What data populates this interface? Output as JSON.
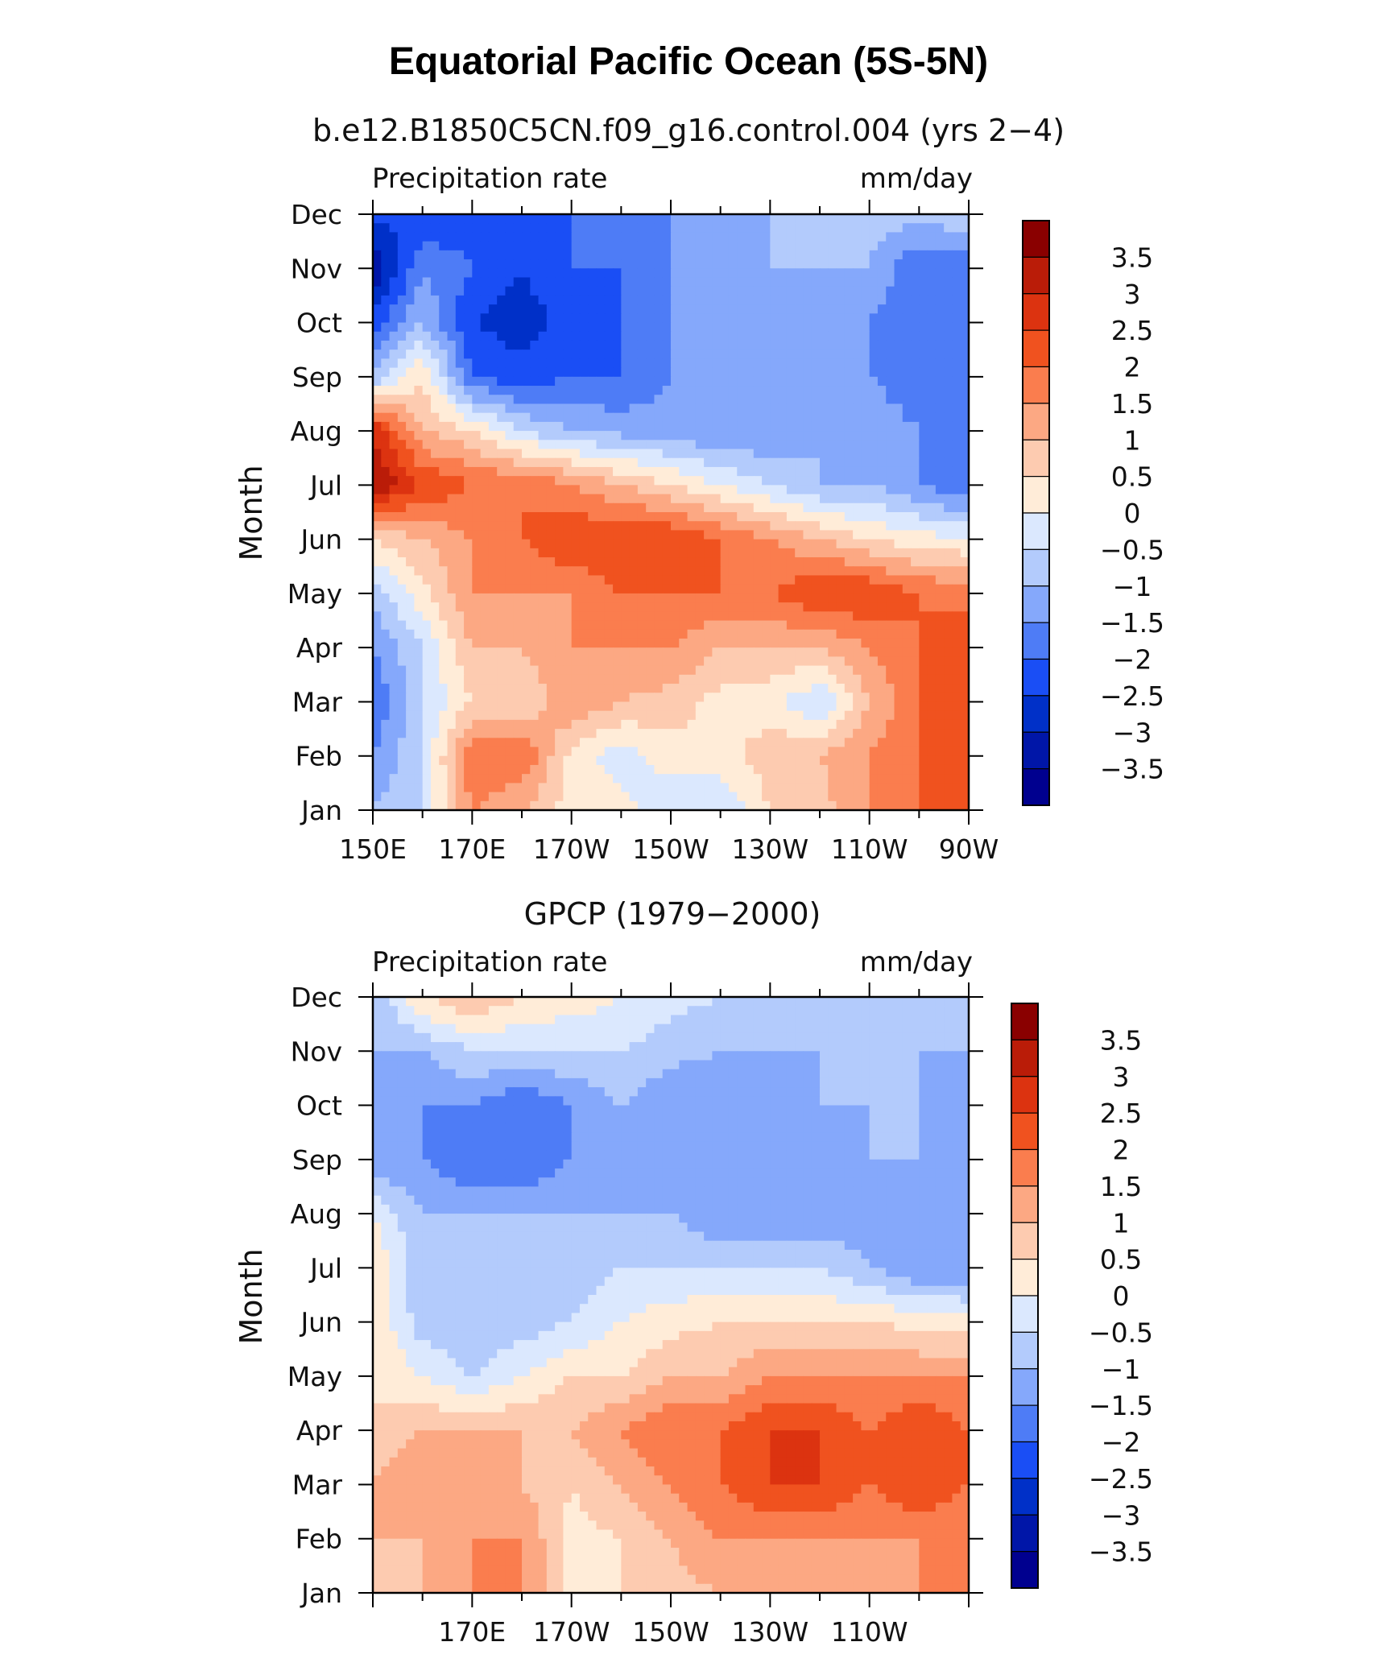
{
  "title": "Equatorial Pacific Ocean (5S-5N)",
  "colors": {
    "scale": [
      "#00008f",
      "#0016a8",
      "#0030c8",
      "#1a4ef5",
      "#4e7cf6",
      "#85a8fb",
      "#b3cbfc",
      "#dbe8fe",
      "#ffecd8",
      "#fdcbb0",
      "#fca883",
      "#fa7d4e",
      "#f0521f",
      "#dc3310",
      "#ba1c08",
      "#8a0000"
    ]
  },
  "chart_data": [
    {
      "type": "heatmap",
      "subtitle": "b.e12.B1850C5CN.f09_g16.control.004 (yrs 2−4)",
      "variable": "Precipitation rate",
      "units": "mm/day",
      "ylabel": "Month",
      "xlabel": "",
      "x_tick_labels": [
        "150E",
        "170E",
        "170W",
        "150W",
        "130W",
        "110W",
        "90W"
      ],
      "y_tick_labels": [
        "Jan",
        "Feb",
        "Mar",
        "Apr",
        "May",
        "Jun",
        "Jul",
        "Aug",
        "Sep",
        "Oct",
        "Nov",
        "Dec"
      ],
      "colorbar_labels": [
        "3.5",
        "3",
        "2.5",
        "2",
        "1.5",
        "1",
        "0.5",
        "0",
        "−0.5",
        "−1",
        "−1.5",
        "−2",
        "−2.5",
        "−3",
        "−3.5"
      ],
      "x_longitudes": [
        150,
        160,
        170,
        180,
        190,
        200,
        210,
        220,
        230,
        240,
        250,
        260,
        270
      ],
      "months": [
        "Jan",
        "Feb",
        "Mar",
        "Apr",
        "May",
        "Jun",
        "Jul",
        "Aug",
        "Sep",
        "Oct",
        "Nov",
        "Dec"
      ],
      "values": [
        [
          -1.0,
          -0.5,
          1.5,
          1.0,
          0.3,
          0.2,
          -0.5,
          -0.5,
          0.5,
          0.8,
          1.5,
          2.0,
          2.5
        ],
        [
          -1.5,
          -0.5,
          2.0,
          2.0,
          0.3,
          -0.3,
          0.3,
          0.3,
          0.8,
          1.0,
          1.5,
          2.0,
          2.5
        ],
        [
          -2.0,
          -0.5,
          0.5,
          0.5,
          1.5,
          1.0,
          0.8,
          0.3,
          0.2,
          -0.5,
          1.0,
          2.0,
          2.5
        ],
        [
          -1.5,
          -0.5,
          1.0,
          1.0,
          1.5,
          1.5,
          1.5,
          1.0,
          1.0,
          1.0,
          1.5,
          2.0,
          2.5
        ],
        [
          -0.8,
          0.3,
          1.5,
          1.5,
          1.5,
          2.0,
          2.0,
          2.0,
          2.0,
          2.5,
          2.5,
          2.0,
          1.8
        ],
        [
          0.5,
          1.0,
          1.5,
          2.0,
          2.5,
          2.5,
          2.5,
          2.0,
          1.5,
          1.0,
          0.5,
          0.2,
          0.0
        ],
        [
          3.5,
          2.5,
          2.0,
          2.0,
          1.5,
          1.0,
          0.5,
          0.0,
          -0.5,
          -1.0,
          -1.0,
          -1.5,
          -2.0
        ],
        [
          3.0,
          1.0,
          0.5,
          -0.5,
          -1.0,
          -1.2,
          -1.3,
          -1.5,
          -1.5,
          -1.0,
          -1.2,
          -1.5,
          -2.0
        ],
        [
          -1.0,
          0.5,
          -2.0,
          -2.3,
          -2.0,
          -2.0,
          -1.5,
          -1.5,
          -1.0,
          -1.0,
          -1.5,
          -1.8,
          -2.0
        ],
        [
          -2.3,
          -1.0,
          -2.5,
          -2.8,
          -2.3,
          -2.0,
          -1.5,
          -1.5,
          -1.0,
          -1.2,
          -1.5,
          -2.0,
          -2.0
        ],
        [
          -3.5,
          -1.5,
          -2.0,
          -2.5,
          -2.0,
          -2.0,
          -1.5,
          -1.2,
          -1.0,
          -1.0,
          -1.0,
          -2.0,
          -2.0
        ],
        [
          -2.3,
          -2.5,
          -2.3,
          -2.3,
          -2.0,
          -2.0,
          -1.5,
          -1.0,
          -1.0,
          -1.0,
          -0.8,
          -0.8,
          -0.5
        ]
      ]
    },
    {
      "type": "heatmap",
      "subtitle": "GPCP (1979−2000)",
      "variable": "Precipitation rate",
      "units": "mm/day",
      "ylabel": "Month",
      "xlabel": "",
      "x_tick_labels": [
        "170E",
        "170W",
        "150W",
        "130W",
        "110W"
      ],
      "y_tick_labels": [
        "Jan",
        "Feb",
        "Mar",
        "Apr",
        "May",
        "Jun",
        "Jul",
        "Aug",
        "Sep",
        "Oct",
        "Nov",
        "Dec"
      ],
      "colorbar_labels": [
        "3.5",
        "3",
        "2.5",
        "2",
        "1.5",
        "1",
        "0.5",
        "0",
        "−0.5",
        "−1",
        "−1.5",
        "−2",
        "−2.5",
        "−3",
        "−3.5"
      ],
      "x_longitudes": [
        150,
        160,
        170,
        180,
        190,
        200,
        210,
        220,
        230,
        240,
        250,
        260,
        270
      ],
      "months": [
        "Jan",
        "Feb",
        "Mar",
        "Apr",
        "May",
        "Jun",
        "Jul",
        "Aug",
        "Sep",
        "Oct",
        "Nov",
        "Dec"
      ],
      "values": [
        [
          0.5,
          1.0,
          1.5,
          1.5,
          0.3,
          0.5,
          0.8,
          1.0,
          1.0,
          1.2,
          1.3,
          1.5,
          1.5
        ],
        [
          1.0,
          1.0,
          1.5,
          1.5,
          0.3,
          0.5,
          1.0,
          1.5,
          1.5,
          1.5,
          1.5,
          1.5,
          1.5
        ],
        [
          1.0,
          1.5,
          1.5,
          1.0,
          0.5,
          1.0,
          1.5,
          2.0,
          2.5,
          2.5,
          2.0,
          2.5,
          2.0
        ],
        [
          0.5,
          1.0,
          1.0,
          1.0,
          1.0,
          1.5,
          2.0,
          2.0,
          2.5,
          2.5,
          2.0,
          2.5,
          2.0
        ],
        [
          0.5,
          0.0,
          -0.5,
          0.0,
          0.5,
          0.5,
          1.0,
          1.0,
          1.5,
          1.5,
          1.5,
          1.5,
          1.5
        ],
        [
          0.5,
          -0.8,
          -1.0,
          -0.8,
          -0.5,
          0.0,
          0.3,
          0.5,
          0.5,
          0.5,
          0.5,
          0.3,
          0.2
        ],
        [
          0.5,
          -1.0,
          -1.0,
          -1.0,
          -1.0,
          -0.5,
          -0.5,
          -0.5,
          -0.5,
          -0.5,
          -1.0,
          -1.5,
          -1.5
        ],
        [
          0.0,
          -1.0,
          -1.0,
          -1.0,
          -1.0,
          -1.0,
          -1.0,
          -1.5,
          -1.5,
          -1.5,
          -1.2,
          -1.2,
          -1.3
        ],
        [
          -1.5,
          -1.5,
          -2.0,
          -2.0,
          -1.5,
          -1.2,
          -1.5,
          -1.5,
          -1.5,
          -1.5,
          -1.0,
          -1.0,
          -1.5
        ],
        [
          -1.5,
          -1.5,
          -1.5,
          -2.0,
          -1.5,
          -1.0,
          -1.5,
          -1.5,
          -1.5,
          -1.0,
          -1.0,
          -1.0,
          -1.5
        ],
        [
          -1.0,
          -1.0,
          -0.5,
          -0.5,
          -0.5,
          -0.5,
          -0.8,
          -1.0,
          -1.0,
          -1.0,
          -1.0,
          -1.0,
          -1.0
        ],
        [
          -1.0,
          0.5,
          1.0,
          0.5,
          0.3,
          0.0,
          -0.3,
          -0.5,
          -1.0,
          -1.0,
          -1.0,
          -1.0,
          -1.0
        ]
      ]
    }
  ]
}
